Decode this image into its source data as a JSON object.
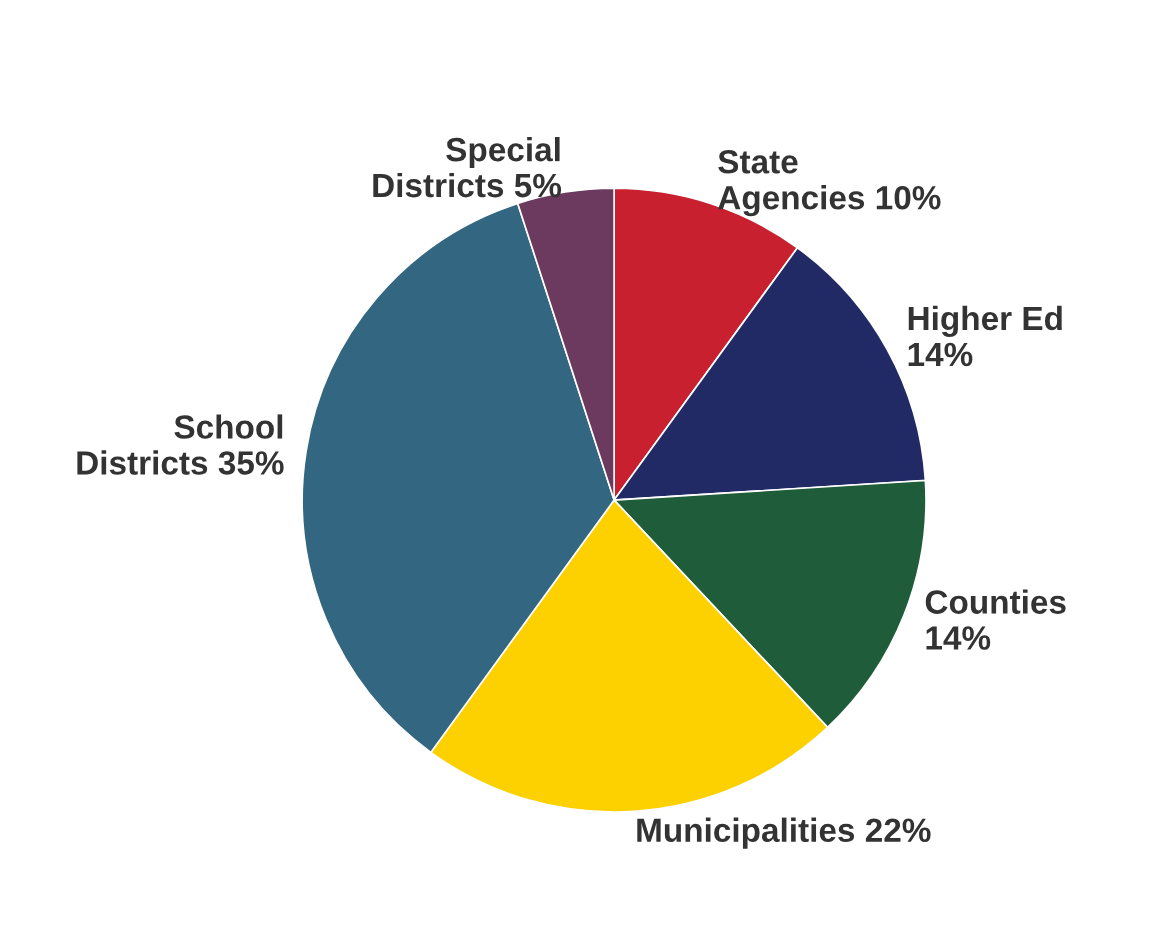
{
  "chart_data": {
    "type": "pie",
    "categories": [
      "State\nAgencies",
      "Higher Ed",
      "Counties",
      "Municipalities",
      "School\nDistricts",
      "Special\nDistricts"
    ],
    "values": [
      10,
      14,
      14,
      22,
      35,
      5
    ],
    "colors": [
      "#c8202f",
      "#222a66",
      "#1f5c3a",
      "#fdd000",
      "#336680",
      "#6b3a5e"
    ],
    "value_labels": [
      "10%",
      "14%",
      "14%",
      "22%",
      "35%",
      "5%"
    ]
  }
}
